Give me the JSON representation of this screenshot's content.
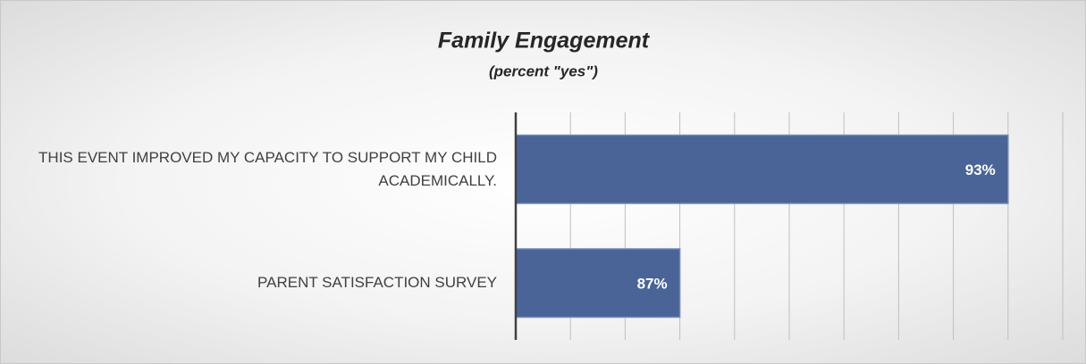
{
  "chart_data": {
    "type": "bar",
    "orientation": "horizontal",
    "title": "Family Engagement",
    "subtitle": "(percent \"yes\")",
    "categories": [
      "THIS EVENT IMPROVED MY CAPACITY TO SUPPORT MY CHILD ACADEMICALLY.",
      "PARENT SATISFACTION SURVEY"
    ],
    "values": [
      93,
      87
    ],
    "value_labels": [
      "93%",
      "87%"
    ],
    "color": "#4a6497",
    "xlim": [
      84,
      94
    ],
    "xticks": [
      84,
      85,
      86,
      87,
      88,
      89,
      90,
      91,
      92,
      93,
      94
    ],
    "grid": true
  }
}
